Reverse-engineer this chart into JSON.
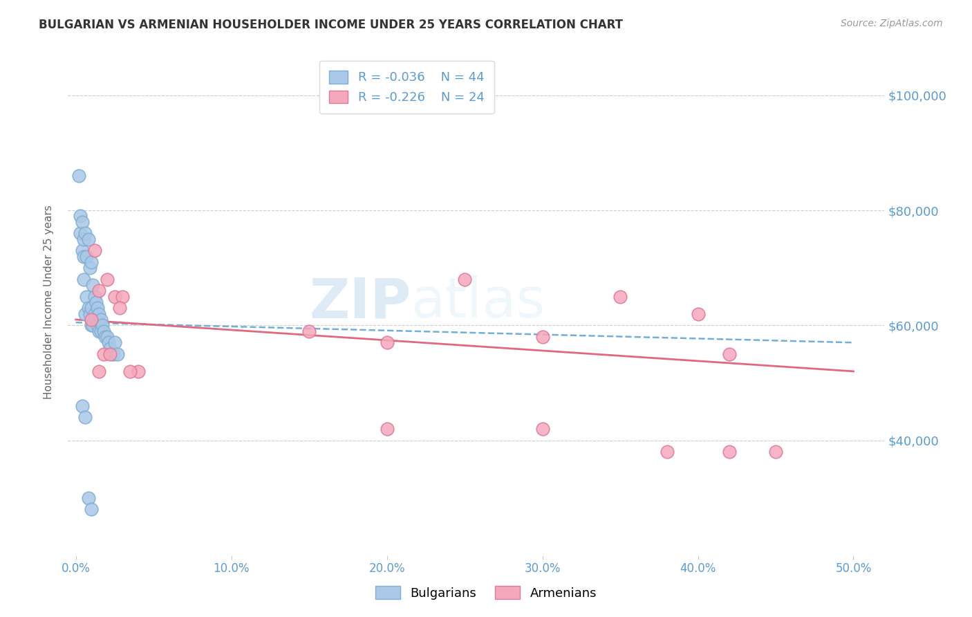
{
  "title": "BULGARIAN VS ARMENIAN HOUSEHOLDER INCOME UNDER 25 YEARS CORRELATION CHART",
  "source": "Source: ZipAtlas.com",
  "ylabel": "Householder Income Under 25 years",
  "xlabel_ticks": [
    "0.0%",
    "10.0%",
    "20.0%",
    "30.0%",
    "40.0%",
    "50.0%"
  ],
  "xlabel_vals": [
    0.0,
    10.0,
    20.0,
    30.0,
    40.0,
    50.0
  ],
  "ylabel_ticks": [
    40000,
    60000,
    80000,
    100000
  ],
  "ylabel_labels": [
    "$40,000",
    "$60,000",
    "$80,000",
    "$100,000"
  ],
  "ylim": [
    20000,
    108000
  ],
  "xlim": [
    -0.5,
    52.0
  ],
  "bg_color": "#ffffff",
  "bulgarian_color": "#aac8e8",
  "armenian_color": "#f5a8bc",
  "bulgarian_edge": "#80aed0",
  "armenian_edge": "#e07898",
  "trend_bulgarian_color": "#70b0d8",
  "trend_armenian_color": "#e06880",
  "legend_R_bulgarian": "R = -0.036",
  "legend_N_bulgarian": "N = 44",
  "legend_R_armenian": "R = -0.226",
  "legend_N_armenian": "N = 24",
  "watermark_zip": "ZIP",
  "watermark_atlas": "atlas",
  "bulgarians_x": [
    0.2,
    0.3,
    0.3,
    0.4,
    0.4,
    0.5,
    0.5,
    0.5,
    0.6,
    0.6,
    0.7,
    0.7,
    0.8,
    0.8,
    0.9,
    0.9,
    1.0,
    1.0,
    1.0,
    1.1,
    1.1,
    1.2,
    1.2,
    1.3,
    1.3,
    1.4,
    1.4,
    1.5,
    1.5,
    1.6,
    1.6,
    1.7,
    1.8,
    1.9,
    2.0,
    2.1,
    2.2,
    2.4,
    2.5,
    2.7,
    0.4,
    0.6,
    0.8,
    1.0
  ],
  "bulgarians_y": [
    86000,
    79000,
    76000,
    78000,
    73000,
    75000,
    72000,
    68000,
    76000,
    62000,
    72000,
    65000,
    75000,
    63000,
    70000,
    62000,
    71000,
    63000,
    60000,
    67000,
    60000,
    65000,
    62000,
    64000,
    61000,
    63000,
    60000,
    62000,
    59000,
    61000,
    59000,
    60000,
    59000,
    58000,
    58000,
    57000,
    56000,
    55000,
    57000,
    55000,
    46000,
    44000,
    30000,
    28000
  ],
  "armenians_x": [
    1.2,
    1.5,
    2.0,
    2.5,
    3.0,
    2.8,
    4.0,
    1.0,
    1.8,
    15.0,
    20.0,
    25.0,
    30.0,
    35.0,
    40.0,
    42.0,
    45.0,
    3.5,
    1.5,
    2.2,
    20.0,
    30.0,
    38.0,
    42.0
  ],
  "armenians_y": [
    73000,
    66000,
    68000,
    65000,
    65000,
    63000,
    52000,
    61000,
    55000,
    59000,
    42000,
    68000,
    58000,
    65000,
    62000,
    55000,
    38000,
    52000,
    52000,
    55000,
    57000,
    42000,
    38000,
    38000
  ]
}
